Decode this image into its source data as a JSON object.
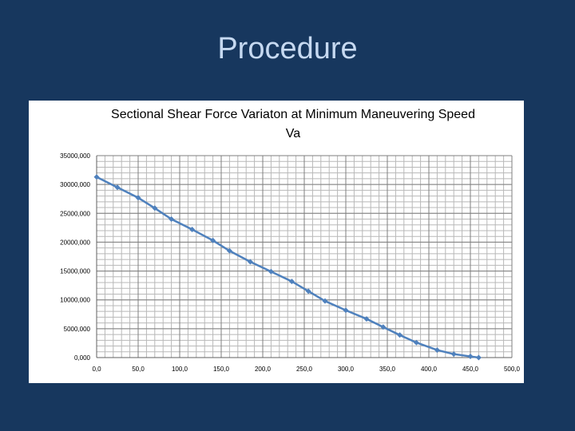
{
  "slide": {
    "title": "Procedure"
  },
  "colors": {
    "background": "#17375e",
    "title": "#c6d9f1",
    "series": "#4f81bd",
    "grid": "#b8b8b8"
  },
  "chart_data": {
    "type": "line",
    "title": "Sectional Shear Force Variaton at Minimum Maneuvering Speed Va",
    "xlabel": "",
    "ylabel": "",
    "xlim": [
      0,
      500
    ],
    "ylim": [
      0,
      35000
    ],
    "x_ticks": [
      "0,0",
      "50,0",
      "100,0",
      "150,0",
      "200,0",
      "250,0",
      "300,0",
      "350,0",
      "400,0",
      "450,0",
      "500,0"
    ],
    "y_ticks": [
      "0,000",
      "5000,000",
      "10000,000",
      "15000,000",
      "20000,000",
      "25000,000",
      "30000,000",
      "35000,000"
    ],
    "grid": true,
    "legend": "none",
    "series": [
      {
        "x": [
          0,
          25,
          50,
          70,
          90,
          115,
          140,
          160,
          185,
          210,
          235,
          255,
          275,
          300,
          325,
          345,
          365,
          385,
          410,
          430,
          450,
          460
        ],
        "y": [
          31300,
          29500,
          27700,
          25900,
          24000,
          22200,
          20300,
          18500,
          16600,
          14900,
          13200,
          11500,
          9800,
          8200,
          6700,
          5300,
          3900,
          2600,
          1300,
          600,
          200,
          0
        ]
      }
    ]
  }
}
